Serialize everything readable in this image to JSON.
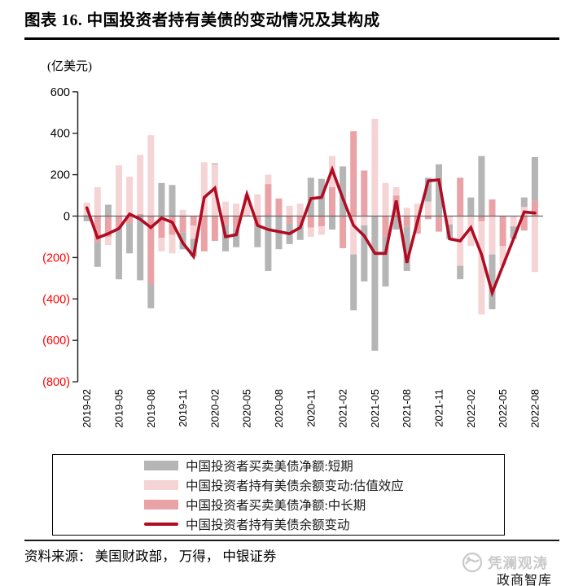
{
  "title": "图表 16. 中国投资者持有美债的变动情况及其构成",
  "unit_label": "(亿美元)",
  "source_note": "资料来源： 美国财政部， 万得， 中银证券",
  "watermark": {
    "brand": "凭澜观涛",
    "sub_brand": "政商智库"
  },
  "colors": {
    "short_term_gray": "#b5b5b5",
    "valuation_light_pink": "#f5d4d6",
    "mid_long_pink": "#e9a2a6",
    "total_line_red": "#b00c23",
    "negative_axis_label_red": "#ff0000",
    "zero_line_gray": "#666666",
    "axis_black": "#262626"
  },
  "chart_data": {
    "type": "bar",
    "subtype": "stacked-bars-with-line-overlay",
    "title": "中国投资者持有美债的变动情况及其构成",
    "ylabel": "(亿美元)",
    "ylim": [
      -800,
      600
    ],
    "ytick_step": 200,
    "negative_tick_format": "parentheses-red",
    "grid": false,
    "legend_position": "bottom-boxed",
    "x_tick_step": 3,
    "x": [
      "2019-02",
      "2019-03",
      "2019-04",
      "2019-05",
      "2019-06",
      "2019-07",
      "2019-08",
      "2019-09",
      "2019-10",
      "2019-11",
      "2019-12",
      "2020-01",
      "2020-02",
      "2020-03",
      "2020-04",
      "2020-05",
      "2020-06",
      "2020-07",
      "2020-08",
      "2020-09",
      "2020-10",
      "2020-11",
      "2020-12",
      "2021-01",
      "2021-02",
      "2021-03",
      "2021-04",
      "2021-05",
      "2021-06",
      "2021-07",
      "2021-08",
      "2021-09",
      "2021-10",
      "2021-11",
      "2021-12",
      "2022-01",
      "2022-02",
      "2022-03",
      "2022-04",
      "2022-05",
      "2022-06",
      "2022-07",
      "2022-08"
    ],
    "stack_order": [
      2,
      1,
      0
    ],
    "series": [
      {
        "name": "中国投资者买卖美债净额:短期",
        "type": "bar",
        "color": "#b5b5b5",
        "values": [
          -25,
          -120,
          55,
          -245,
          -145,
          -310,
          -115,
          160,
          150,
          -80,
          -85,
          0,
          5,
          -130,
          -90,
          0,
          -100,
          -265,
          -160,
          -100,
          -75,
          185,
          180,
          -65,
          240,
          -270,
          -270,
          -650,
          -240,
          -65,
          -215,
          0,
          115,
          250,
          -70,
          -65,
          90,
          290,
          -265,
          0,
          -60,
          45,
          210
        ]
      },
      {
        "name": "中国投资者持有美债余额变动:估值效应",
        "type": "bar",
        "color": "#f5d4d6",
        "values": [
          60,
          140,
          -40,
          245,
          190,
          285,
          390,
          -65,
          -90,
          30,
          -65,
          260,
          250,
          70,
          60,
          100,
          105,
          45,
          0,
          50,
          60,
          -45,
          -40,
          150,
          0,
          -185,
          -45,
          470,
          160,
          40,
          40,
          60,
          70,
          0,
          -40,
          -240,
          -145,
          -450,
          -185,
          -95,
          -50,
          45,
          -270
        ]
      },
      {
        "name": "中国投资者买卖美债净额:中长期",
        "type": "bar",
        "color": "#e9a2a6",
        "values": [
          5,
          -125,
          -100,
          -60,
          -35,
          10,
          -330,
          -105,
          -90,
          -80,
          -45,
          -170,
          -120,
          -40,
          -60,
          5,
          -50,
          155,
          85,
          -35,
          -40,
          -55,
          -50,
          140,
          -155,
          410,
          220,
          0,
          -100,
          100,
          -50,
          -85,
          -15,
          -75,
          0,
          185,
          0,
          -25,
          80,
          -145,
          0,
          -70,
          75
        ]
      },
      {
        "name": "中国投资者持有美债余额变动",
        "type": "line",
        "color": "#b00c23",
        "values": [
          40,
          -105,
          -85,
          -60,
          10,
          -15,
          -55,
          -10,
          -30,
          -130,
          -195,
          90,
          135,
          -100,
          -90,
          105,
          -45,
          -65,
          -75,
          -85,
          -55,
          85,
          90,
          225,
          85,
          -45,
          -95,
          -180,
          -180,
          75,
          -225,
          -25,
          170,
          175,
          -110,
          -120,
          -55,
          -185,
          -370,
          -240,
          -110,
          20,
          15
        ]
      }
    ]
  }
}
